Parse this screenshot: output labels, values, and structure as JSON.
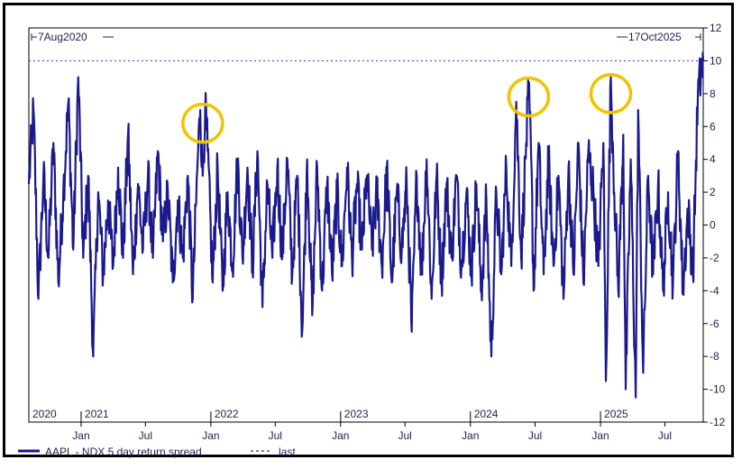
{
  "chart_data": {
    "type": "line",
    "start_label": "7Aug2020",
    "end_label": "17Oct2025",
    "x_range": [
      "2020-08-07",
      "2025-10-17"
    ],
    "ylim": [
      -12,
      12
    ],
    "y_ticks": [
      12,
      10,
      8,
      6,
      4,
      2,
      0,
      -2,
      -4,
      -6,
      -8,
      -10,
      -12
    ],
    "x_month_ticks": [
      {
        "label": "Jan",
        "date": "2021-01-01"
      },
      {
        "label": "Jul",
        "date": "2021-07-01"
      },
      {
        "label": "Jan",
        "date": "2022-01-01"
      },
      {
        "label": "Jul",
        "date": "2022-07-01"
      },
      {
        "label": "Jan",
        "date": "2023-01-01"
      },
      {
        "label": "Jul",
        "date": "2023-07-01"
      },
      {
        "label": "Jan",
        "date": "2024-01-01"
      },
      {
        "label": "Jul",
        "date": "2024-07-01"
      },
      {
        "label": "Jan",
        "date": "2025-01-01"
      },
      {
        "label": "Jul",
        "date": "2025-07-01"
      }
    ],
    "x_year_labels": [
      {
        "label": "2020",
        "date": "2020-08-07"
      },
      {
        "label": "2021",
        "date": "2021-01-01"
      },
      {
        "label": "2022",
        "date": "2022-01-01"
      },
      {
        "label": "2023",
        "date": "2023-01-01"
      },
      {
        "label": "2024",
        "date": "2024-01-01"
      },
      {
        "label": "2025",
        "date": "2025-01-01"
      }
    ],
    "series": [
      {
        "name": "AAPL - NDX 5 day return spread",
        "color": "#1a1a8c",
        "points": [
          [
            "2020-08-07",
            2.5
          ],
          [
            "2020-08-20",
            7.0
          ],
          [
            "2020-09-03",
            -4.5
          ],
          [
            "2020-09-17",
            3.0
          ],
          [
            "2020-10-01",
            -2.0
          ],
          [
            "2020-10-15",
            5.0
          ],
          [
            "2020-10-29",
            -3.5
          ],
          [
            "2020-11-12",
            2.0
          ],
          [
            "2020-11-26",
            7.5
          ],
          [
            "2020-12-10",
            -1.5
          ],
          [
            "2020-12-24",
            9.0
          ],
          [
            "2021-01-07",
            -2.0
          ],
          [
            "2021-01-21",
            3.0
          ],
          [
            "2021-02-04",
            -8.0
          ],
          [
            "2021-02-18",
            2.0
          ],
          [
            "2021-03-04",
            -3.0
          ],
          [
            "2021-03-18",
            1.5
          ],
          [
            "2021-04-01",
            -2.5
          ],
          [
            "2021-04-15",
            3.5
          ],
          [
            "2021-04-29",
            -2.0
          ],
          [
            "2021-05-13",
            5.5
          ],
          [
            "2021-05-27",
            -3.0
          ],
          [
            "2021-06-10",
            2.5
          ],
          [
            "2021-06-24",
            -1.5
          ],
          [
            "2021-07-08",
            3.0
          ],
          [
            "2021-07-22",
            -2.0
          ],
          [
            "2021-08-05",
            4.5
          ],
          [
            "2021-08-19",
            -1.0
          ],
          [
            "2021-09-02",
            2.0
          ],
          [
            "2021-09-16",
            -3.5
          ],
          [
            "2021-09-30",
            1.5
          ],
          [
            "2021-10-14",
            -2.0
          ],
          [
            "2021-10-28",
            3.0
          ],
          [
            "2021-11-11",
            -4.5
          ],
          [
            "2021-11-25",
            4.0
          ],
          [
            "2021-12-02",
            7.0
          ],
          [
            "2021-12-09",
            3.0
          ],
          [
            "2021-12-16",
            7.0
          ],
          [
            "2021-12-23",
            4.5
          ],
          [
            "2022-01-06",
            -3.5
          ],
          [
            "2022-01-20",
            3.5
          ],
          [
            "2022-02-03",
            -4.0
          ],
          [
            "2022-02-17",
            2.0
          ],
          [
            "2022-03-03",
            -2.5
          ],
          [
            "2022-03-17",
            4.0
          ],
          [
            "2022-03-31",
            -2.0
          ],
          [
            "2022-04-14",
            3.5
          ],
          [
            "2022-04-28",
            -2.5
          ],
          [
            "2022-05-12",
            4.5
          ],
          [
            "2022-05-26",
            -5.0
          ],
          [
            "2022-06-09",
            2.5
          ],
          [
            "2022-06-23",
            -2.0
          ],
          [
            "2022-07-07",
            3.5
          ],
          [
            "2022-07-21",
            -2.0
          ],
          [
            "2022-08-04",
            4.0
          ],
          [
            "2022-08-18",
            -3.0
          ],
          [
            "2022-09-01",
            3.0
          ],
          [
            "2022-09-15",
            -6.5
          ],
          [
            "2022-09-29",
            4.0
          ],
          [
            "2022-10-13",
            -5.5
          ],
          [
            "2022-10-27",
            3.5
          ],
          [
            "2022-11-10",
            -4.0
          ],
          [
            "2022-11-24",
            2.5
          ],
          [
            "2022-12-08",
            -3.0
          ],
          [
            "2022-12-22",
            2.0
          ],
          [
            "2023-01-05",
            -2.5
          ],
          [
            "2023-01-19",
            3.5
          ],
          [
            "2023-02-02",
            -2.0
          ],
          [
            "2023-02-16",
            2.5
          ],
          [
            "2023-03-02",
            -1.5
          ],
          [
            "2023-03-16",
            3.0
          ],
          [
            "2023-03-30",
            -1.5
          ],
          [
            "2023-04-13",
            2.0
          ],
          [
            "2023-04-27",
            -2.5
          ],
          [
            "2023-05-11",
            3.5
          ],
          [
            "2023-05-25",
            -3.5
          ],
          [
            "2023-06-08",
            2.0
          ],
          [
            "2023-06-22",
            -1.5
          ],
          [
            "2023-07-06",
            2.5
          ],
          [
            "2023-07-20",
            -6.5
          ],
          [
            "2023-08-03",
            3.0
          ],
          [
            "2023-08-17",
            -3.0
          ],
          [
            "2023-08-31",
            4.0
          ],
          [
            "2023-09-14",
            -4.5
          ],
          [
            "2023-09-28",
            3.0
          ],
          [
            "2023-10-12",
            -3.5
          ],
          [
            "2023-10-26",
            2.5
          ],
          [
            "2023-11-09",
            -2.0
          ],
          [
            "2023-11-23",
            3.0
          ],
          [
            "2023-12-07",
            -2.5
          ],
          [
            "2023-12-21",
            2.0
          ],
          [
            "2024-01-04",
            -3.0
          ],
          [
            "2024-01-18",
            2.5
          ],
          [
            "2024-02-01",
            -4.0
          ],
          [
            "2024-02-15",
            1.5
          ],
          [
            "2024-02-29",
            -8.0
          ],
          [
            "2024-03-14",
            2.0
          ],
          [
            "2024-03-28",
            -3.0
          ],
          [
            "2024-04-11",
            3.5
          ],
          [
            "2024-04-25",
            -2.5
          ],
          [
            "2024-05-09",
            7.5
          ],
          [
            "2024-05-23",
            -2.0
          ],
          [
            "2024-06-06",
            5.0
          ],
          [
            "2024-06-13",
            8.0
          ],
          [
            "2024-06-20",
            4.0
          ],
          [
            "2024-06-27",
            -4.0
          ],
          [
            "2024-07-11",
            5.0
          ],
          [
            "2024-07-25",
            -3.0
          ],
          [
            "2024-08-08",
            4.0
          ],
          [
            "2024-08-22",
            -2.5
          ],
          [
            "2024-09-05",
            3.0
          ],
          [
            "2024-09-19",
            -4.5
          ],
          [
            "2024-10-03",
            3.5
          ],
          [
            "2024-10-17",
            -3.0
          ],
          [
            "2024-10-31",
            5.0
          ],
          [
            "2024-11-14",
            -3.5
          ],
          [
            "2024-11-28",
            4.5
          ],
          [
            "2024-12-12",
            2.0
          ],
          [
            "2024-12-26",
            -2.5
          ],
          [
            "2025-01-09",
            5.0
          ],
          [
            "2025-01-16",
            -9.5
          ],
          [
            "2025-01-30",
            9.0
          ],
          [
            "2025-02-06",
            4.0
          ],
          [
            "2025-02-20",
            -4.0
          ],
          [
            "2025-03-06",
            5.5
          ],
          [
            "2025-03-13",
            -10.0
          ],
          [
            "2025-03-27",
            4.0
          ],
          [
            "2025-04-10",
            -10.5
          ],
          [
            "2025-04-17",
            7.0
          ],
          [
            "2025-05-01",
            -9.0
          ],
          [
            "2025-05-15",
            3.0
          ],
          [
            "2025-05-29",
            -3.0
          ],
          [
            "2025-06-12",
            2.5
          ],
          [
            "2025-06-26",
            -4.0
          ],
          [
            "2025-07-10",
            2.0
          ],
          [
            "2025-07-24",
            -3.5
          ],
          [
            "2025-08-07",
            4.5
          ],
          [
            "2025-08-21",
            -4.0
          ],
          [
            "2025-09-04",
            1.0
          ],
          [
            "2025-09-18",
            -3.0
          ],
          [
            "2025-10-02",
            8.0
          ],
          [
            "2025-10-17",
            10.0
          ]
        ]
      },
      {
        "name": "last",
        "style": "dotted",
        "color": "#4a4ad0",
        "value": 10
      }
    ],
    "annotations": [
      {
        "type": "circle",
        "center": [
          "2021-12-09",
          6.2
        ],
        "color": "#f2c300"
      },
      {
        "type": "circle",
        "center": [
          "2024-06-13",
          7.8
        ],
        "color": "#f2c300"
      },
      {
        "type": "circle",
        "center": [
          "2025-01-30",
          8.0
        ],
        "color": "#f2c300"
      }
    ],
    "legend": [
      {
        "label": "AAPL - NDX 5 day return spread",
        "style": "solid"
      },
      {
        "label": "last",
        "style": "dotted"
      }
    ],
    "grid": false,
    "legend_position": "bottom-left"
  }
}
